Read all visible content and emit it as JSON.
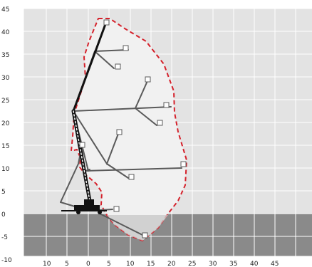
{
  "y_ticks": [
    "45",
    "40",
    "35",
    "30",
    "25",
    "20",
    "15",
    "10",
    "5",
    "0",
    "-5",
    "-10"
  ],
  "x_ticks": [
    "10",
    "5",
    "0",
    "5",
    "10",
    "15",
    "20",
    "25",
    "30",
    "35",
    "40",
    "45"
  ],
  "colors": {
    "sky": "#e3e3e3",
    "ground": "#8a8a8a",
    "grid": "#ffffff",
    "envelope_fill": "#f1f1f1",
    "envelope_line": "#d5212b",
    "boom": "#111111",
    "jib": "#5a5a5a"
  },
  "icons": [
    "platform-basket-icon",
    "crane-base-icon"
  ]
}
